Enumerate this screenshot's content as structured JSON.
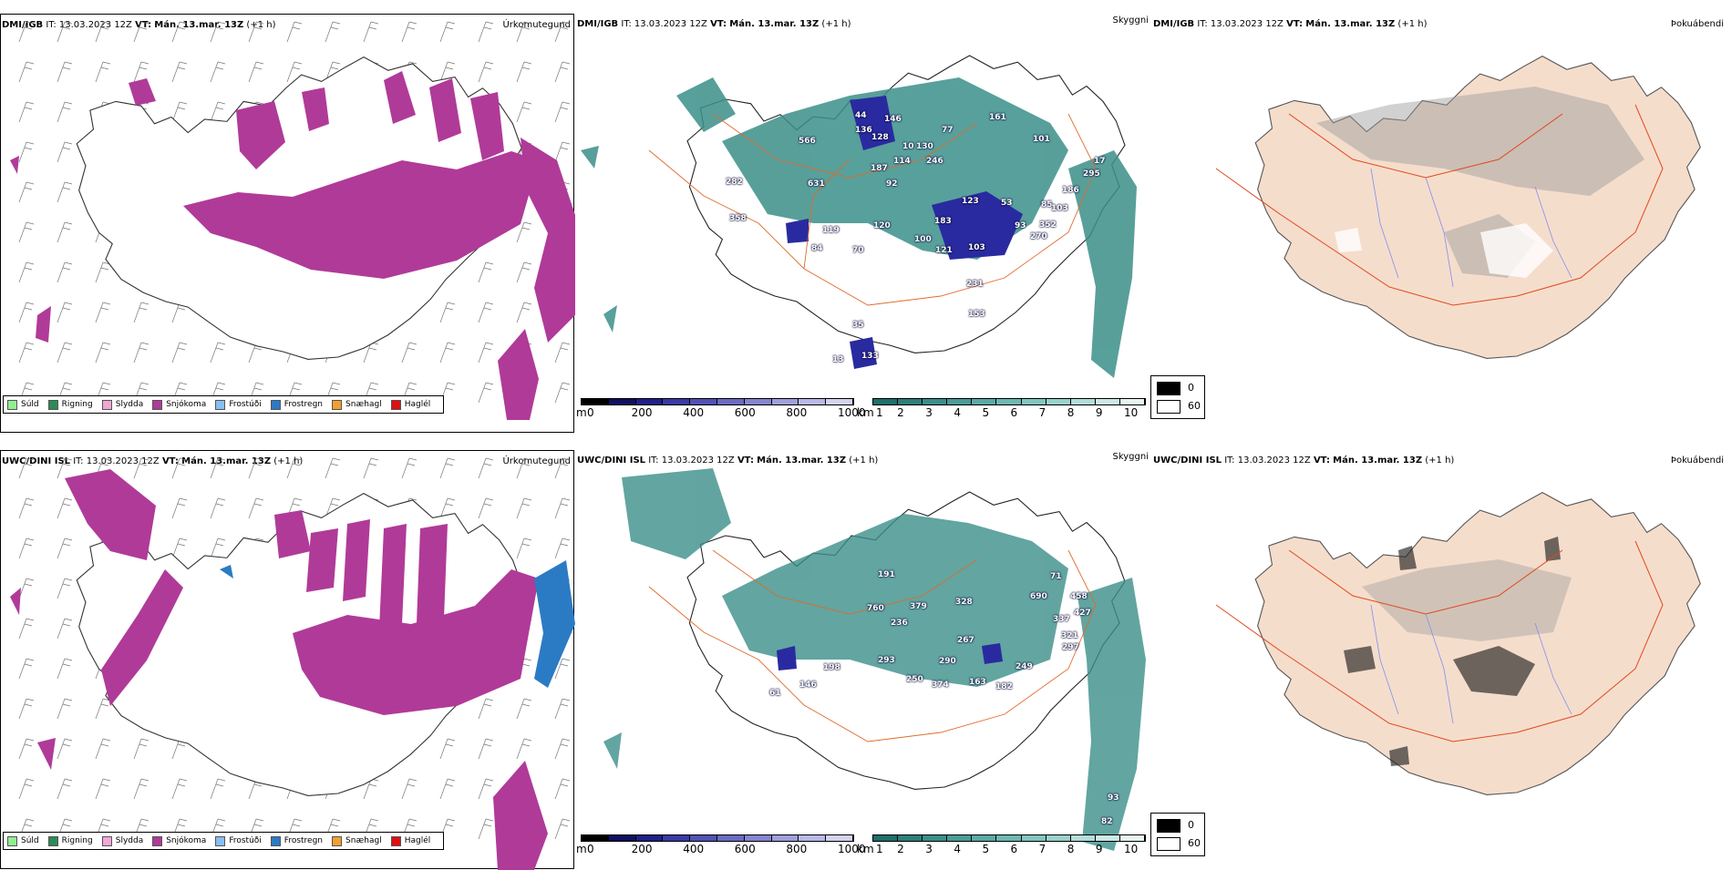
{
  "models": [
    {
      "model": "DMI/IGB",
      "it_label": "IT: 13.03.2023 12Z",
      "vt_label": "VT:",
      "vt_value": "Mán. 13.mar. 13Z",
      "lead": "(+1 h)",
      "labels": [
        "44",
        "136",
        "146",
        "77",
        "161",
        "101",
        "566",
        "128",
        "10",
        "130",
        "114",
        "246",
        "187",
        "92",
        "631",
        "282",
        "358",
        "123",
        "183",
        "53",
        "85",
        "103",
        "186",
        "295",
        "17",
        "119",
        "120",
        "100",
        "121",
        "103",
        "93",
        "352",
        "270",
        "84",
        "70",
        "231",
        "153",
        "35",
        "13",
        "133"
      ]
    },
    {
      "model": "UWC/DINI ISL",
      "it_label": "IT: 13.03.2023 12Z",
      "vt_label": "VT:",
      "vt_value": "Mán. 13.mar. 13Z",
      "lead": "(+1 h)",
      "labels": [
        "191",
        "71",
        "458",
        "760",
        "379",
        "328",
        "690",
        "427",
        "236",
        "337",
        "267",
        "321",
        "297",
        "290",
        "198",
        "293",
        "249",
        "146",
        "61",
        "250",
        "374",
        "163",
        "182",
        "93",
        "82"
      ]
    }
  ],
  "panel_titles": {
    "precip": "Úrkomutegund",
    "visibility": "Skyggni",
    "fog": "Þokuábendi"
  },
  "precip_legend": [
    {
      "label": "Súld",
      "color": "#90ee90"
    },
    {
      "label": "Rigning",
      "color": "#2e8b57"
    },
    {
      "label": "Slydda",
      "color": "#f4a6d7"
    },
    {
      "label": "Snjókoma",
      "color": "#b03a98"
    },
    {
      "label": "Frostúði",
      "color": "#87bfee"
    },
    {
      "label": "Frostregn",
      "color": "#2b7bc4"
    },
    {
      "label": "Snæhagl",
      "color": "#f0a030"
    },
    {
      "label": "Haglél",
      "color": "#e01010"
    }
  ],
  "ceiling_scale": {
    "unit": "m",
    "ticks": [
      "0",
      "200",
      "400",
      "600",
      "800",
      "1000"
    ],
    "colors": [
      "#000000",
      "#101060",
      "#20208a",
      "#3a3aa5",
      "#5252b5",
      "#6b6bc4",
      "#8585d0",
      "#9f9fdc",
      "#b9b9e7",
      "#d3d3f0"
    ]
  },
  "visibility_scale": {
    "unit": "km",
    "ticks": [
      "1",
      "2",
      "3",
      "4",
      "5",
      "6",
      "7",
      "8",
      "9",
      "10"
    ],
    "colors": [
      "#1f6f6a",
      "#2d7f79",
      "#3b8f89",
      "#4a9d97",
      "#5aaaa4",
      "#6db8b2",
      "#82c5bf",
      "#99d1cc",
      "#b2ddd9",
      "#cce9e6",
      "#e6f4f2"
    ]
  },
  "cloud_key": [
    {
      "value": "0",
      "color": "#000000"
    },
    {
      "value": "60",
      "color": "#ffffff"
    }
  ],
  "colors": {
    "snow": "#b03a98",
    "frostregn": "#2b7bc4",
    "vis": "#3b8f89",
    "ceiling": "#2a2aa0",
    "land": "#f5ddcc",
    "roads": "#e06a2c"
  }
}
